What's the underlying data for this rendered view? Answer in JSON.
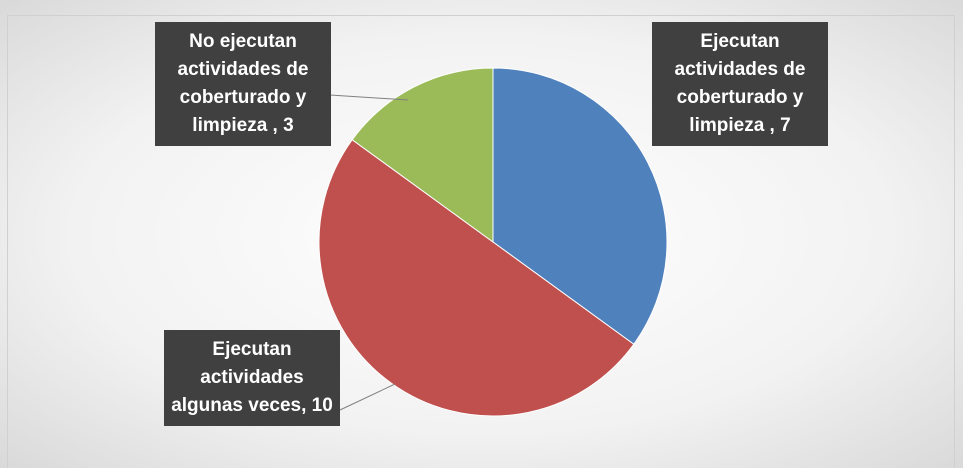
{
  "chart_data": {
    "type": "pie",
    "categories": [
      "Ejecutan actividades de coberturado y limpieza ,",
      "Ejecutan actividades algunas veces,",
      "No ejecutan actividades de coberturado y limpieza ,"
    ],
    "values": [
      7,
      10,
      3
    ],
    "colors": [
      "#4f81bd",
      "#c0504d",
      "#9bbb59"
    ]
  }
}
